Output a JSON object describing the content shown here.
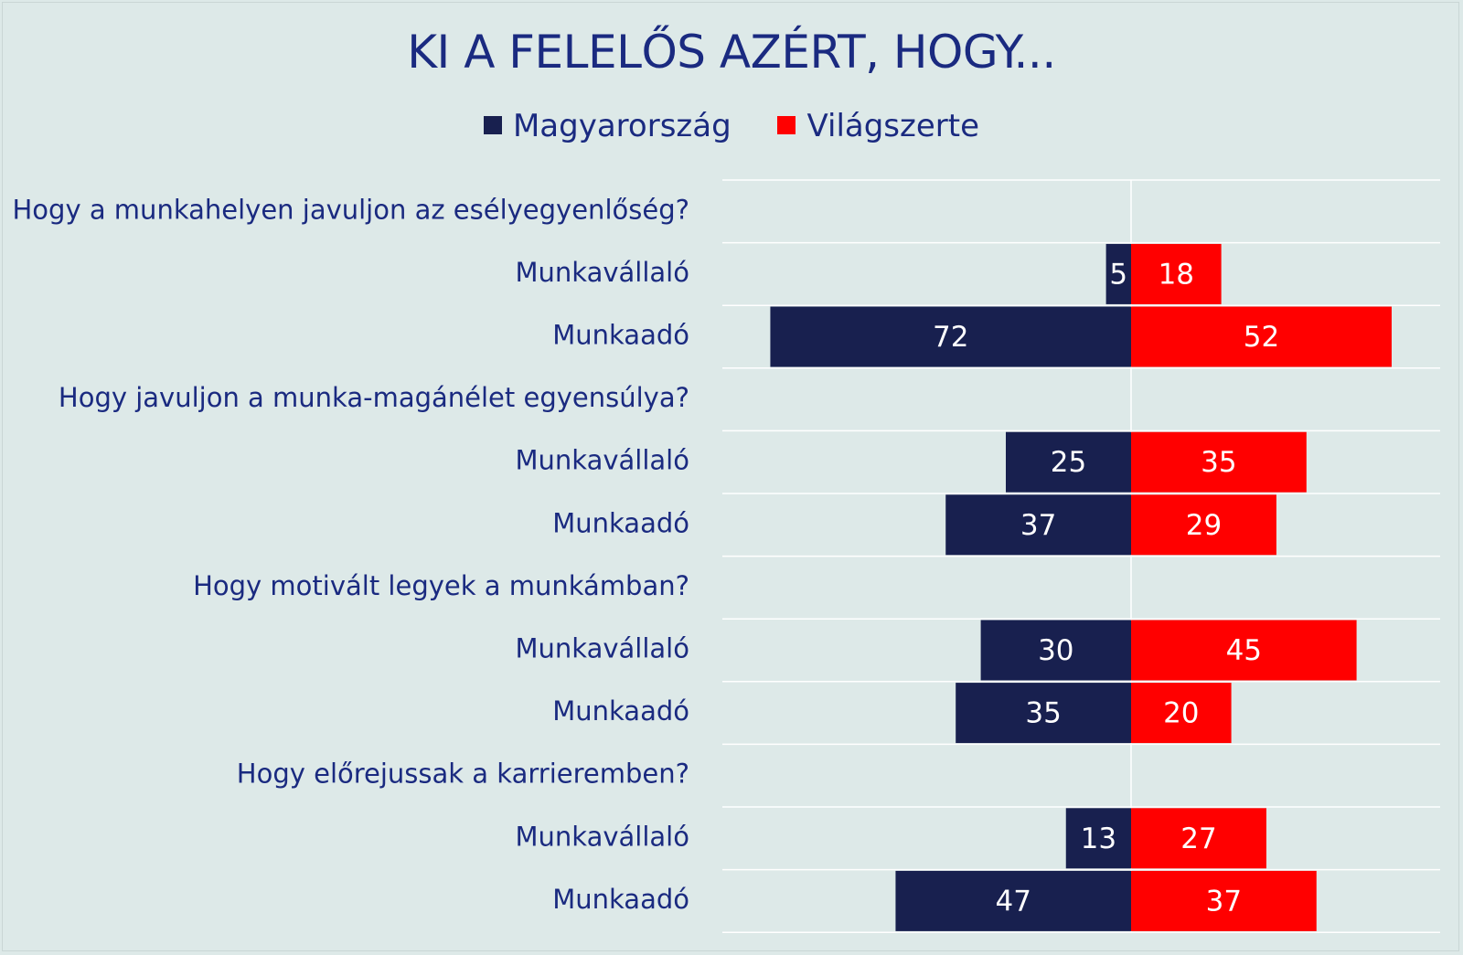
{
  "title": "KI A FELELŐS AZÉRT, HOGY...",
  "legend": [
    {
      "label": "Magyarország",
      "color": "#18204f"
    },
    {
      "label": "Világszerte",
      "color": "#ff0000"
    }
  ],
  "chart_data": {
    "type": "bar",
    "orientation": "horizontal",
    "layout": "diverging",
    "title": "KI A FELELŐS AZÉRT, HOGY...",
    "legend_position": "top",
    "groups": [
      {
        "question": "Hogy a munkahelyen javuljon az esélyegyenlőség?",
        "rows": [
          {
            "label": "Munkavállaló",
            "Magyarország": 5,
            "Világszerte": 18
          },
          {
            "label": "Munkaadó",
            "Magyarország": 72,
            "Világszerte": 52
          }
        ]
      },
      {
        "question": "Hogy javuljon a munka-magánélet egyensúlya?",
        "rows": [
          {
            "label": "Munkavállaló",
            "Magyarország": 25,
            "Világszerte": 35
          },
          {
            "label": "Munkaadó",
            "Magyarország": 37,
            "Világszerte": 29
          }
        ]
      },
      {
        "question": "Hogy motivált legyek a munkámban?",
        "rows": [
          {
            "label": "Munkavállaló",
            "Magyarország": 30,
            "Világszerte": 45
          },
          {
            "label": "Munkaadó",
            "Magyarország": 35,
            "Világszerte": 20
          }
        ]
      },
      {
        "question": "Hogy előrejussak a karrieremben?",
        "rows": [
          {
            "label": "Munkavállaló",
            "Magyarország": 13,
            "Világszerte": 27
          },
          {
            "label": "Munkaadó",
            "Magyarország": 47,
            "Világszerte": 37
          }
        ]
      }
    ],
    "series": [
      {
        "name": "Magyarország",
        "color": "#18204f",
        "side": "left"
      },
      {
        "name": "Világszerte",
        "color": "#ff0000",
        "side": "right"
      }
    ],
    "grid": true
  }
}
